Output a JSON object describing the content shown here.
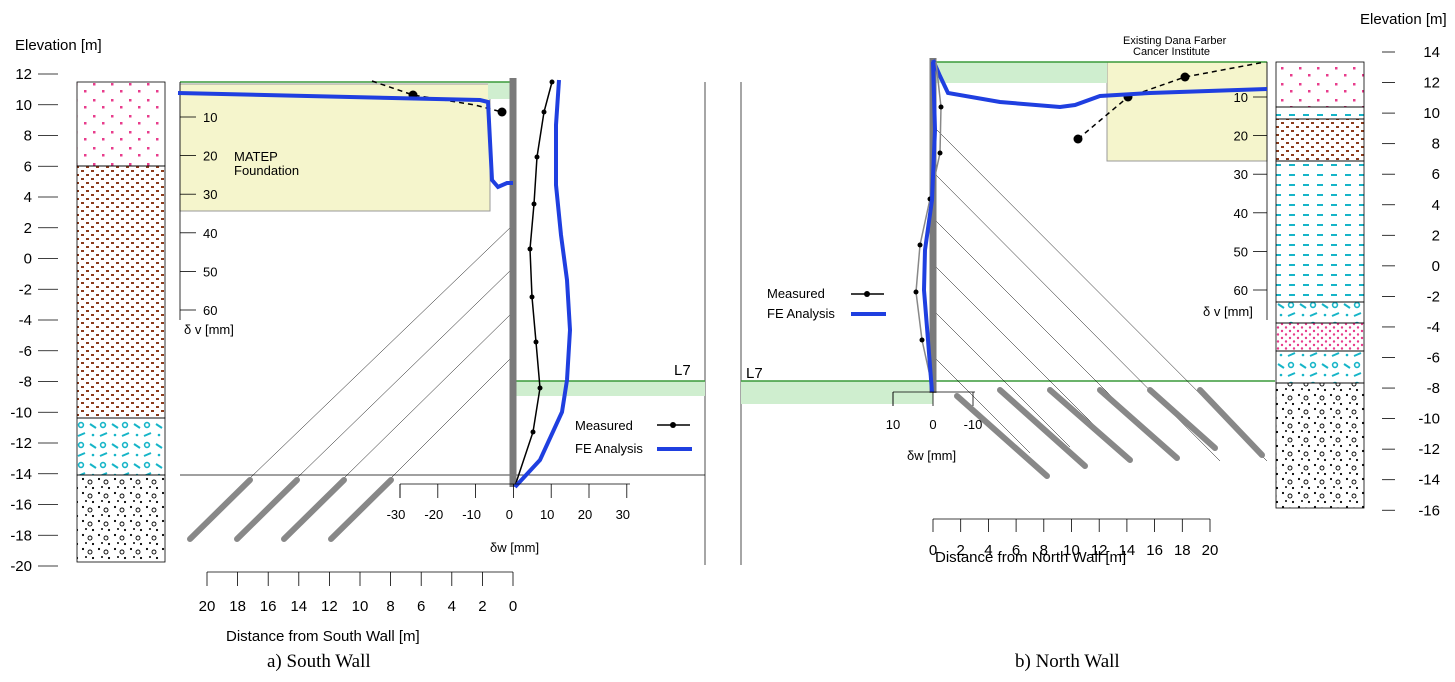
{
  "figure": {
    "caption_a": "a) South Wall",
    "caption_b": "b)  North Wall",
    "elevation_label_left": "Elevation [m]",
    "elevation_label_right": "Elevation [m]",
    "elevation_ticks_left": [
      "12",
      "10",
      "8",
      "6",
      "4",
      "2",
      "0",
      "-2",
      "-4",
      "-6",
      "-8",
      "-10",
      "-12",
      "-14",
      "-16",
      "-18",
      "-20"
    ],
    "elevation_ticks_right": [
      "14",
      "12",
      "10",
      "8",
      "6",
      "4",
      "2",
      "0",
      "-2",
      "-4",
      "-6",
      "-8",
      "-10",
      "-12",
      "-14",
      "-16"
    ]
  },
  "south": {
    "dv_label": "δ v [mm]",
    "dv_ticks": [
      "10",
      "20",
      "30",
      "40",
      "50",
      "60"
    ],
    "foundation_label_1": "MATEP",
    "foundation_label_2": "Foundation",
    "level_label": "L7",
    "legend_measured": "Measured",
    "legend_fe": "FE Analysis",
    "dw_ticks": [
      "-30",
      "-20",
      "-10",
      "0",
      "10",
      "20",
      "30"
    ],
    "dw_label": "δw [mm]",
    "distance_ticks": [
      "20",
      "18",
      "16",
      "14",
      "12",
      "10",
      "8",
      "6",
      "4",
      "2",
      "0"
    ],
    "distance_label": "Distance from South Wall [m]"
  },
  "north": {
    "building_label_1": "Existing Dana Farber",
    "building_label_2": "Cancer Institute",
    "dv_ticks": [
      "10",
      "20",
      "30",
      "40",
      "50",
      "60"
    ],
    "dv_label": "δ v [mm]",
    "level_label": "L7",
    "legend_measured": "Measured",
    "legend_fe": "FE Analysis",
    "dw_ticks": [
      "10",
      "0",
      "-10"
    ],
    "dw_label": "δw [mm]",
    "distance_ticks": [
      "0",
      "2",
      "4",
      "6",
      "8",
      "10",
      "12",
      "14",
      "16",
      "18",
      "20"
    ],
    "distance_label": "Distance from North Wall [m]"
  },
  "colors": {
    "fe_line": "#1f3fe0",
    "measured_line": "#000000",
    "wall": "#7a7a7a",
    "foundation_fill": "#f5f5cc",
    "green_band": "#cfeecf",
    "green_line": "#3a9a3a",
    "fill_pink": "#e83c8c",
    "fill_brown": "#8b3a1a",
    "fill_cyan": "#16b5c8"
  }
}
